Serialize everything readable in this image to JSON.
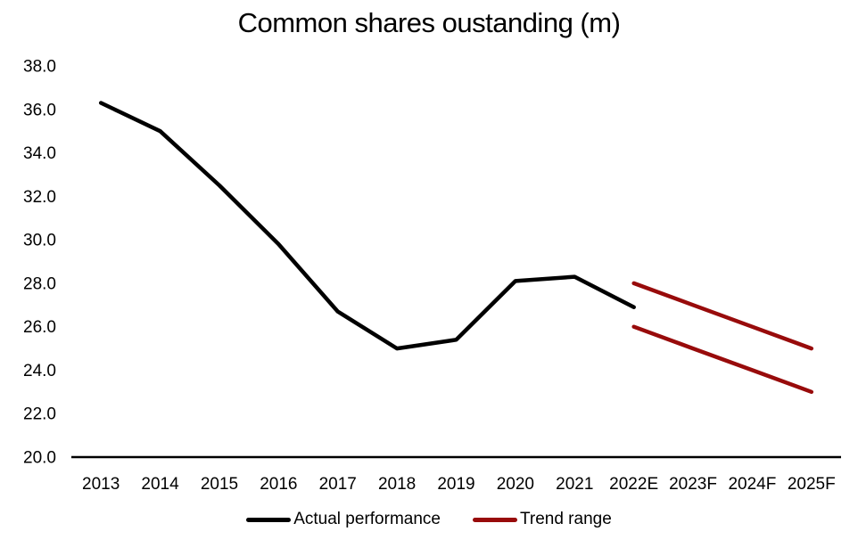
{
  "title": "Common shares oustanding (m)",
  "legend": {
    "items": [
      {
        "label": "Actual performance",
        "color": "#000000"
      },
      {
        "label": "Trend range",
        "color": "#980B0B"
      }
    ]
  },
  "chart_data": {
    "type": "line",
    "title": "Common shares oustanding (m)",
    "categories": [
      "2013",
      "2014",
      "2015",
      "2016",
      "2017",
      "2018",
      "2019",
      "2020",
      "2021",
      "2022E",
      "2023F",
      "2024F",
      "2025F"
    ],
    "series": [
      {
        "name": "Actual performance",
        "color": "#000000",
        "values": [
          36.3,
          35.0,
          32.5,
          29.8,
          26.7,
          25.0,
          25.4,
          28.1,
          28.3,
          26.9,
          null,
          null,
          null
        ]
      },
      {
        "name": "Trend range (upper)",
        "color": "#980B0B",
        "values": [
          null,
          null,
          null,
          null,
          null,
          null,
          null,
          null,
          null,
          28.0,
          27.0,
          26.0,
          25.0
        ]
      },
      {
        "name": "Trend range (lower)",
        "color": "#980B0B",
        "values": [
          null,
          null,
          null,
          null,
          null,
          null,
          null,
          null,
          null,
          26.0,
          25.0,
          24.0,
          23.0
        ]
      }
    ],
    "xlabel": "",
    "ylabel": "",
    "ylim": [
      20.0,
      38.0
    ],
    "ytick_step": 2.0,
    "ytick_decimals": 1,
    "grid": false,
    "legend_position": "bottom",
    "legend_entries": [
      "Actual performance",
      "Trend range"
    ]
  }
}
